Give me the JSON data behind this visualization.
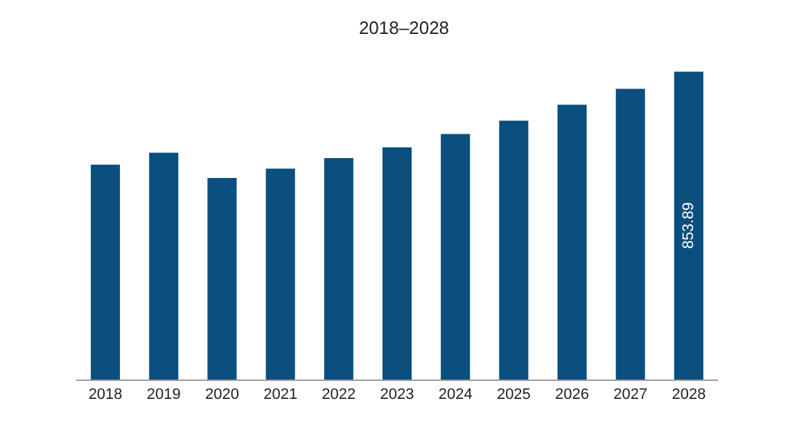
{
  "chart_data": {
    "type": "bar",
    "title": "2018–2028",
    "categories": [
      "2018",
      "2019",
      "2020",
      "2021",
      "2022",
      "2023",
      "2024",
      "2025",
      "2026",
      "2027",
      "2028"
    ],
    "values": [
      596,
      629,
      559,
      585,
      614,
      644,
      681,
      718,
      762,
      806,
      853.89
    ],
    "value_labels": [
      null,
      null,
      null,
      null,
      null,
      null,
      null,
      null,
      null,
      null,
      "853.89"
    ],
    "color": "#0a4f7e",
    "grid": false,
    "legend": false
  }
}
